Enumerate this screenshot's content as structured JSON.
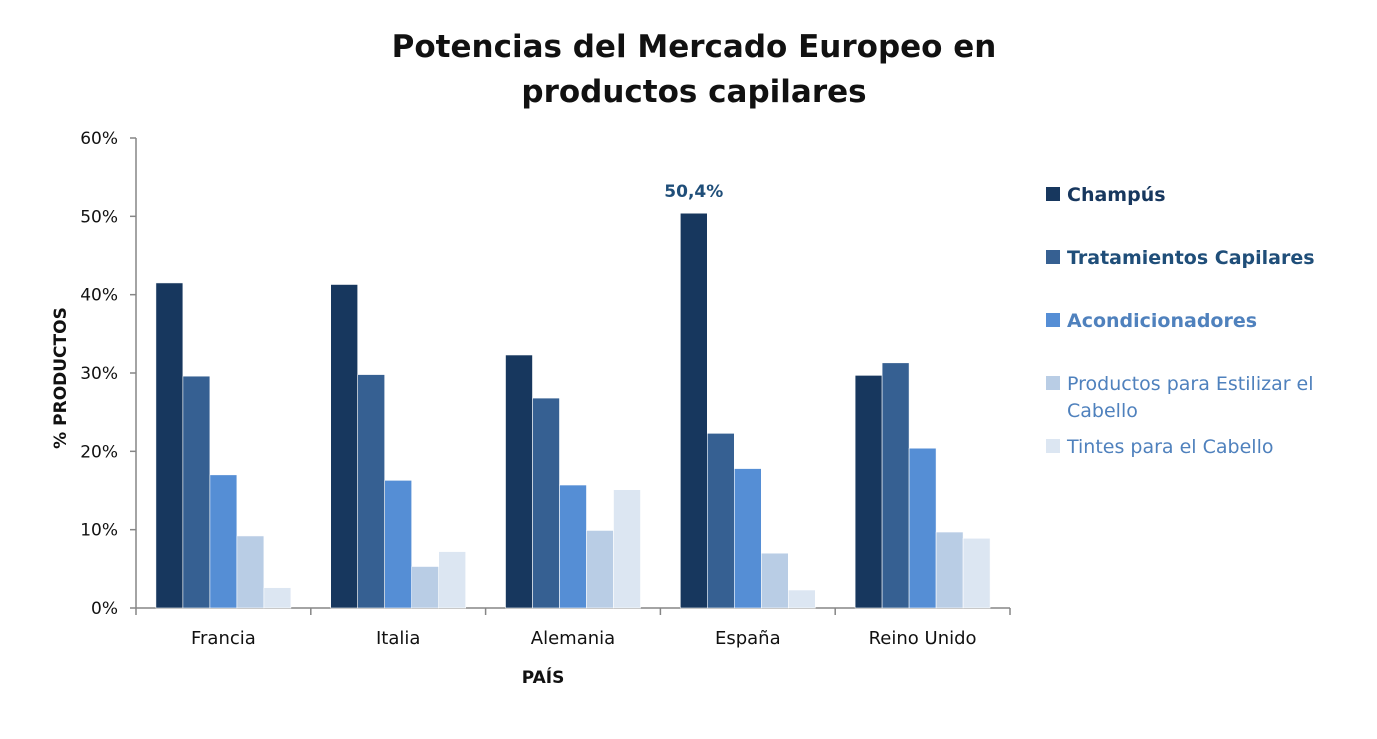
{
  "chart_data": {
    "type": "bar",
    "title_lines": [
      "Potencias del Mercado Europeo en",
      "productos capilares"
    ],
    "xlabel": "PAÍS",
    "ylabel": "% PRODUCTOS",
    "ylim": [
      0,
      60
    ],
    "yticks": [
      "0%",
      "10%",
      "20%",
      "30%",
      "40%",
      "50%",
      "60%"
    ],
    "categories": [
      "Francia",
      "Italia",
      "Alemania",
      "España",
      "Reino Unido"
    ],
    "series": [
      {
        "name": "Champús",
        "color": "#17375e",
        "label_color": "#17375e",
        "label_bold": true,
        "values": [
          41.5,
          41.3,
          32.3,
          50.4,
          29.7
        ]
      },
      {
        "name": "Tratamientos Capilares",
        "color": "#366092",
        "label_color": "#1f4e79",
        "label_bold": true,
        "values": [
          29.6,
          29.8,
          26.8,
          22.3,
          31.3
        ]
      },
      {
        "name": "Acondicionadores",
        "color": "#558ed5",
        "label_color": "#4f81bd",
        "label_bold": true,
        "values": [
          17.0,
          16.3,
          15.7,
          17.8,
          20.4
        ]
      },
      {
        "name": "Productos para Estilizar el Cabello",
        "name_lines": [
          "Productos para Estilizar el",
          "Cabello"
        ],
        "color": "#b9cde5",
        "label_color": "#4f81bd",
        "label_bold": false,
        "values": [
          9.2,
          5.3,
          9.9,
          7.0,
          9.7
        ]
      },
      {
        "name": "Tintes para el Cabello",
        "color": "#dce6f2",
        "label_color": "#4f81bd",
        "label_bold": false,
        "values": [
          2.6,
          7.2,
          15.1,
          2.3,
          8.9
        ]
      }
    ],
    "annotations": [
      {
        "text": "50,4%",
        "category": "España",
        "series": "Champús",
        "color": "#1f4e79"
      }
    ],
    "legend_position": "right",
    "grid": false
  }
}
